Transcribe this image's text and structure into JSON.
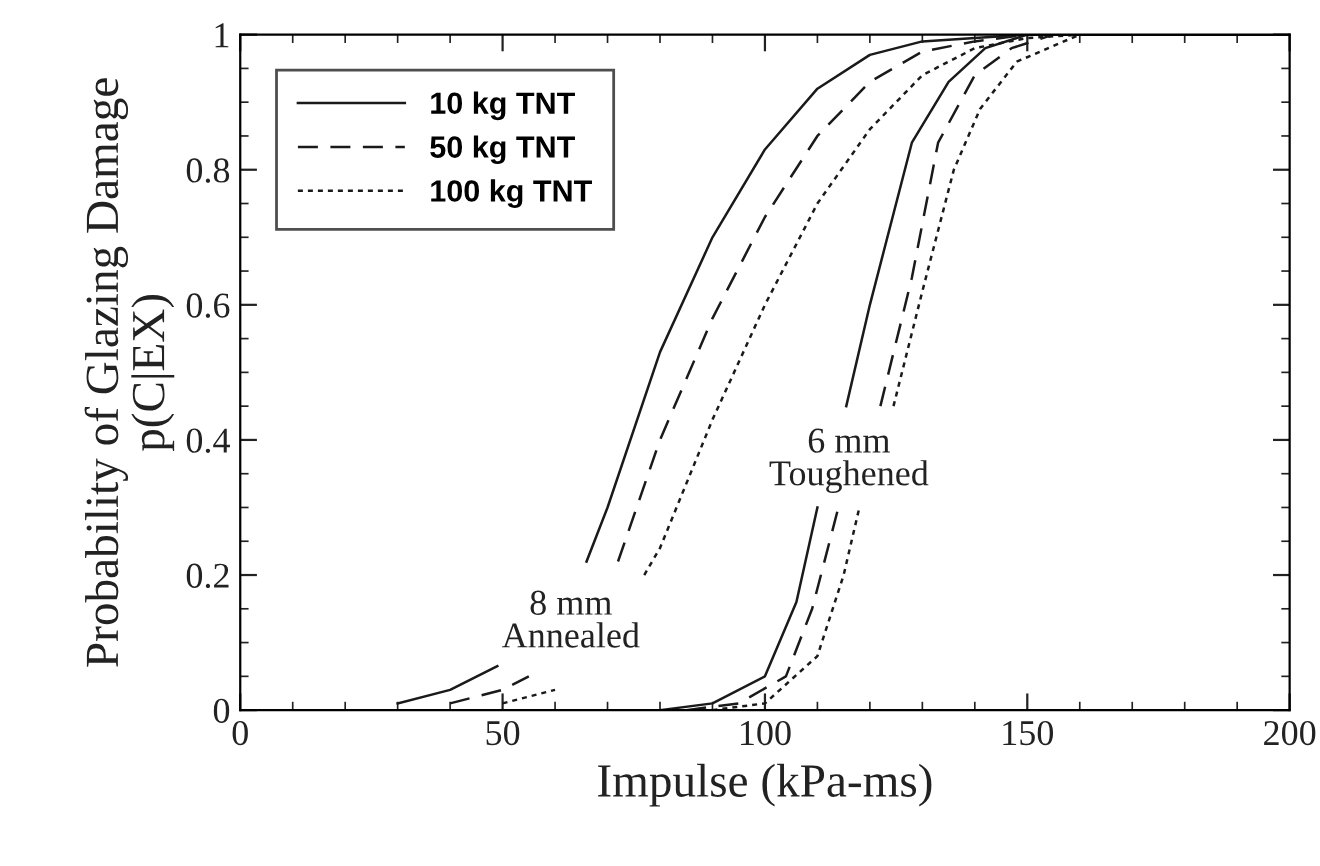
{
  "chart_data": {
    "type": "line",
    "xlabel": "Impulse (kPa-ms)",
    "ylabel": "Probability of Glazing Damage\np(C|EX)",
    "xlim": [
      0,
      200
    ],
    "ylim": [
      0,
      1
    ],
    "xticks": [
      0,
      50,
      100,
      150,
      200
    ],
    "yticks": [
      0,
      0.2,
      0.4,
      0.6,
      0.8,
      1
    ],
    "grid": false,
    "legend": "top left",
    "marker": "none",
    "series": [
      {
        "name": "10 kg TNT",
        "color": "#1a1a1a",
        "line_style": "solid",
        "x": [
          30,
          40,
          49,
          57,
          66,
          70,
          80,
          90,
          100,
          110,
          120,
          130,
          140,
          150,
          200
        ],
        "values": [
          0.01,
          0.03,
          0.065,
          null,
          0.22,
          0.3,
          0.53,
          0.7,
          0.83,
          0.92,
          0.97,
          0.99,
          0.995,
          1,
          1
        ]
      },
      {
        "name": "50 kg TNT",
        "color": "#1a1a1a",
        "line_style": "dashed",
        "x": [
          40,
          50,
          55,
          63,
          72,
          80,
          90,
          100,
          110,
          120,
          130,
          140,
          150,
          200
        ],
        "values": [
          0.01,
          0.03,
          0.05,
          null,
          0.22,
          0.4,
          0.58,
          0.73,
          0.85,
          0.93,
          0.975,
          0.99,
          1,
          1
        ]
      },
      {
        "name": "100 kg TNT",
        "color": "#1a1a1a",
        "line_style": "dotted",
        "x": [
          50,
          60,
          65,
          77,
          80,
          90,
          100,
          110,
          120,
          130,
          140,
          150,
          160,
          200
        ],
        "values": [
          0.01,
          0.03,
          null,
          0.2,
          0.24,
          0.43,
          0.6,
          0.75,
          0.86,
          0.94,
          0.98,
          0.995,
          1,
          1
        ]
      },
      {
        "color": "#1a1a1a",
        "line_style": "solid",
        "x": [
          80,
          90,
          100,
          106,
          110,
          113,
          115.5,
          120,
          128,
          135,
          142,
          150,
          200
        ],
        "values": [
          0,
          0.01,
          0.05,
          0.16,
          0.3,
          null,
          0.45,
          0.6,
          0.84,
          0.93,
          0.98,
          1,
          1
        ]
      },
      {
        "color": "#1a1a1a",
        "line_style": "dashed",
        "x": [
          85,
          95,
          104,
          109,
          114,
          118,
          122,
          128,
          133,
          140,
          147,
          155,
          200
        ],
        "values": [
          0,
          0.01,
          0.05,
          0.15,
          0.3,
          null,
          0.45,
          0.64,
          0.84,
          0.94,
          0.98,
          1,
          1
        ]
      },
      {
        "color": "#1a1a1a",
        "line_style": "dotted",
        "x": [
          90,
          100,
          110,
          115,
          118,
          121,
          124.5,
          130,
          136,
          141,
          148,
          160,
          200
        ],
        "values": [
          0,
          0.01,
          0.08,
          0.2,
          0.3,
          null,
          0.45,
          0.62,
          0.8,
          0.89,
          0.96,
          1,
          1
        ]
      }
    ],
    "annotations": [
      "8 mm\nAnnealed",
      "6 mm\nToughened"
    ]
  }
}
